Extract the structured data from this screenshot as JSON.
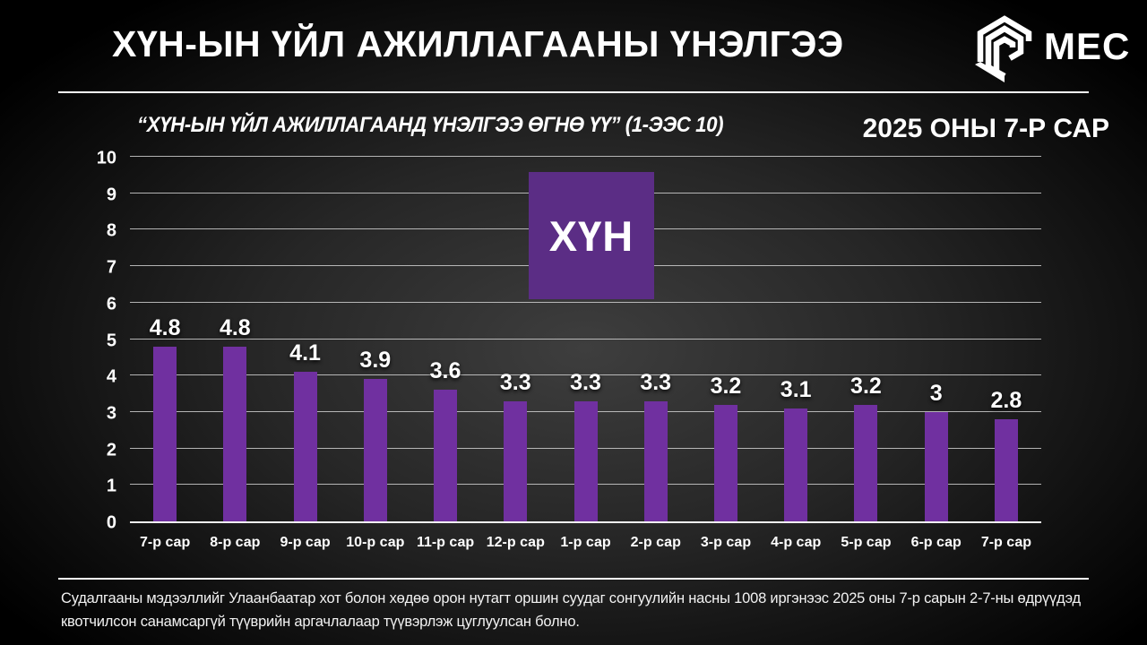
{
  "header": {
    "title": "ХҮН-ЫН ҮЙЛ АЖИЛЛАГААНЫ ҮНЭЛГЭЭ",
    "logo_text": "MEC"
  },
  "subtitle": "“ХҮН-ЫН ҮЙЛ АЖИЛЛАГААНД ҮНЭЛГЭЭ ӨГНӨ ҮҮ” (1-ЭЭС 10)",
  "period": "2025 ОНЫ 7-Р САР",
  "center_logo": {
    "label": "ХҮН",
    "color": "#5b2d85"
  },
  "chart_data": {
    "type": "bar",
    "title": "“ХҮН-ЫН ҮЙЛ АЖИЛЛАГААНД ҮНЭЛГЭЭ ӨГНӨ ҮҮ” (1-ЭЭС 10)",
    "categories": [
      "7-р сар",
      "8-р сар",
      "9-р сар",
      "10-р сар",
      "11-р сар",
      "12-р сар",
      "1-р сар",
      "2-р сар",
      "3-р сар",
      "4-р сар",
      "5-р сар",
      "6-р сар",
      "7-р сар"
    ],
    "values": [
      4.8,
      4.8,
      4.1,
      3.9,
      3.6,
      3.3,
      3.3,
      3.3,
      3.2,
      3.1,
      3.2,
      3,
      2.8
    ],
    "value_labels": [
      "4.8",
      "4.8",
      "4.1",
      "3.9",
      "3.6",
      "3.3",
      "3.3",
      "3.3",
      "3.2",
      "3.1",
      "3.2",
      "3",
      "2.8"
    ],
    "xlabel": "",
    "ylabel": "",
    "ylim": [
      0,
      10
    ],
    "yticks": [
      0,
      1,
      2,
      3,
      4,
      5,
      6,
      7,
      8,
      9,
      10
    ],
    "bar_color": "#7030A0",
    "grid": true,
    "legend_position": "none"
  },
  "footer": {
    "text": "Судалгааны мэдээллийг Улаанбаатар хот болон хөдөө орон нутагт оршин суудаг сонгуулийн насны 1008 иргэнээс 2025 оны 7-р сарын 2-7-ны өдрүүдэд квотчилсон санамсаргүй түүврийн аргачлалаар түүвэрлэж цуглуулсан болно."
  }
}
